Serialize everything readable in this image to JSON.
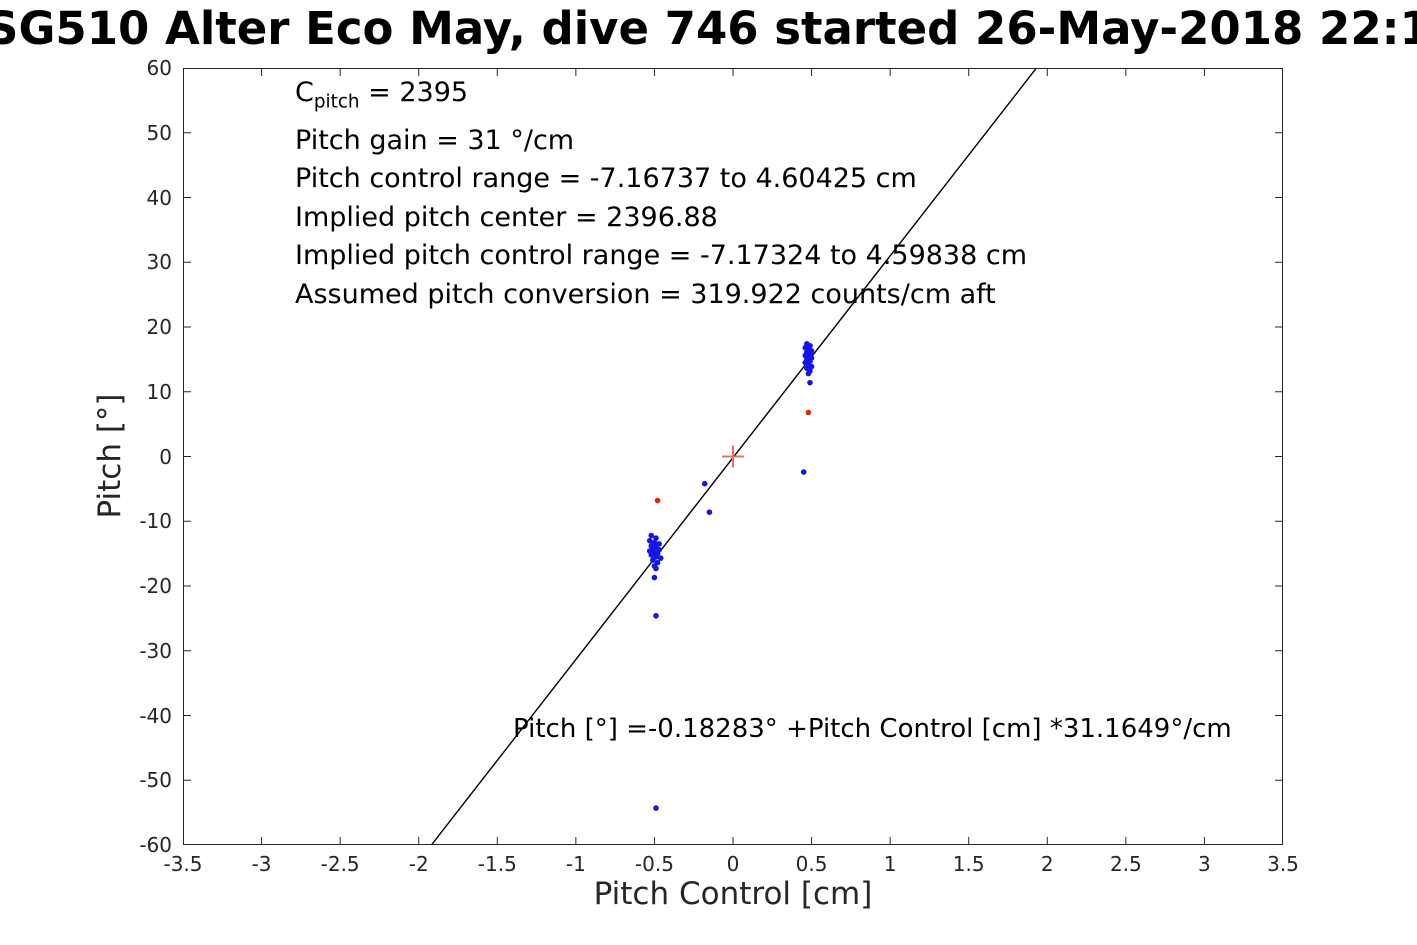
{
  "chart_data": {
    "type": "scatter",
    "title": "SG510 Alter Eco May, dive 746 started 26-May-2018 22:1",
    "xlabel": "Pitch Control [cm]",
    "ylabel": "Pitch [°]",
    "xlim": [
      -3.5,
      3.5
    ],
    "ylim": [
      -60,
      60
    ],
    "grid": false,
    "x_ticks": [
      -3.5,
      -3,
      -2.5,
      -2,
      -1.5,
      -1,
      -0.5,
      0,
      0.5,
      1,
      1.5,
      2,
      2.5,
      3,
      3.5
    ],
    "x_tick_labels": [
      "-3.5",
      "-3",
      "-2.5",
      "-2",
      "-1.5",
      "-1",
      "-0.5",
      "0",
      "0.5",
      "1",
      "1.5",
      "2",
      "2.5",
      "3",
      "3.5"
    ],
    "y_ticks": [
      -60,
      -50,
      -40,
      -30,
      -20,
      -10,
      0,
      10,
      20,
      30,
      40,
      50,
      60
    ],
    "y_tick_labels": [
      "-60",
      "-50",
      "-40",
      "-30",
      "-20",
      "-10",
      "0",
      "10",
      "20",
      "30",
      "40",
      "50",
      "60"
    ],
    "fit_line": {
      "slope": 31.1649,
      "intercept": -0.18283,
      "color": "#000000"
    },
    "series": [
      {
        "name": "pitch-observations",
        "color": "#1515e6",
        "marker": "dot",
        "points": [
          [
            -0.52,
            -12.2
          ],
          [
            -0.49,
            -12.6
          ],
          [
            -0.53,
            -13.0
          ],
          [
            -0.5,
            -13.3
          ],
          [
            -0.47,
            -13.5
          ],
          [
            -0.52,
            -13.8
          ],
          [
            -0.49,
            -14.0
          ],
          [
            -0.51,
            -14.2
          ],
          [
            -0.47,
            -14.4
          ],
          [
            -0.53,
            -14.6
          ],
          [
            -0.5,
            -14.8
          ],
          [
            -0.48,
            -15.0
          ],
          [
            -0.52,
            -15.2
          ],
          [
            -0.49,
            -15.5
          ],
          [
            -0.46,
            -15.7
          ],
          [
            -0.51,
            -16.0
          ],
          [
            -0.48,
            -16.4
          ],
          [
            -0.5,
            -16.9
          ],
          [
            -0.49,
            -17.3
          ],
          [
            -0.5,
            -18.7
          ],
          [
            0.47,
            17.4
          ],
          [
            0.49,
            17.1
          ],
          [
            0.46,
            16.8
          ],
          [
            0.48,
            16.6
          ],
          [
            0.5,
            16.3
          ],
          [
            0.47,
            16.1
          ],
          [
            0.49,
            15.9
          ],
          [
            0.46,
            15.6
          ],
          [
            0.48,
            15.4
          ],
          [
            0.5,
            15.2
          ],
          [
            0.47,
            15.0
          ],
          [
            0.49,
            14.7
          ],
          [
            0.46,
            14.5
          ],
          [
            0.48,
            14.2
          ],
          [
            0.5,
            13.9
          ],
          [
            0.47,
            13.6
          ],
          [
            0.49,
            13.2
          ],
          [
            0.48,
            12.8
          ],
          [
            0.49,
            11.4
          ],
          [
            -0.49,
            -24.6
          ],
          [
            -0.18,
            -4.2
          ],
          [
            -0.15,
            -8.6
          ],
          [
            0.45,
            -2.4
          ],
          [
            -0.49,
            -54.3
          ]
        ]
      },
      {
        "name": "flagged-observations",
        "color": "#ee2200",
        "marker": "dot",
        "points": [
          [
            -0.48,
            -6.8
          ],
          [
            0.48,
            6.8
          ]
        ]
      }
    ],
    "origin_marker": {
      "marker": "plus",
      "color": "#e8755a",
      "point": [
        0,
        0
      ]
    }
  },
  "annotations": {
    "cpitch": {
      "prefix": "C",
      "sub": "pitch",
      "rest": " = 2395"
    },
    "lines": [
      "Pitch gain = 31 °/cm",
      "Pitch control range = -7.16737 to 4.60425 cm",
      "Implied pitch center = 2396.88",
      "Implied pitch control range = -7.17324 to 4.59838 cm",
      "Assumed pitch conversion = 319.922 counts/cm aft"
    ],
    "equation": "Pitch [°] =-0.18283° +Pitch Control [cm] *31.1649°/cm"
  }
}
